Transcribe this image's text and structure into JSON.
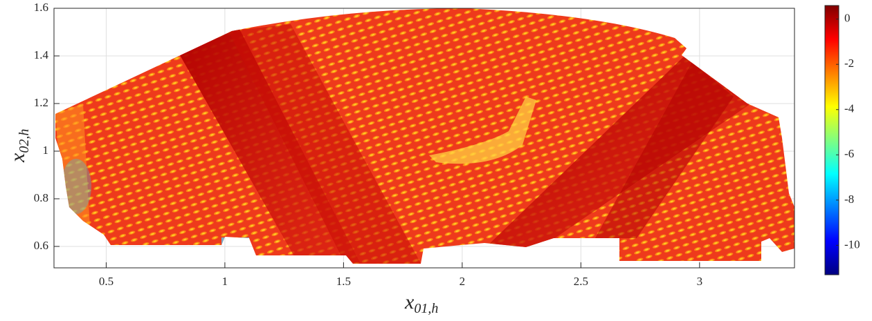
{
  "chart_data": {
    "type": "heatmap",
    "xlabel": {
      "base": "x",
      "sub": "01,h"
    },
    "ylabel": {
      "base": "x",
      "sub": "02,h"
    },
    "xlim": [
      0.28,
      3.4
    ],
    "xticks": [
      0.5,
      1,
      1.5,
      2,
      2.5,
      3
    ],
    "ylim": [
      0.51,
      1.6
    ],
    "yticks": [
      0.6,
      0.8,
      1,
      1.2,
      1.4,
      1.6
    ],
    "grid": true,
    "colorbar": {
      "colormap": "jet",
      "clim": [
        -11.3,
        0.6
      ],
      "ticks": [
        -10,
        -8,
        -6,
        -4,
        -2,
        0
      ]
    }
  }
}
